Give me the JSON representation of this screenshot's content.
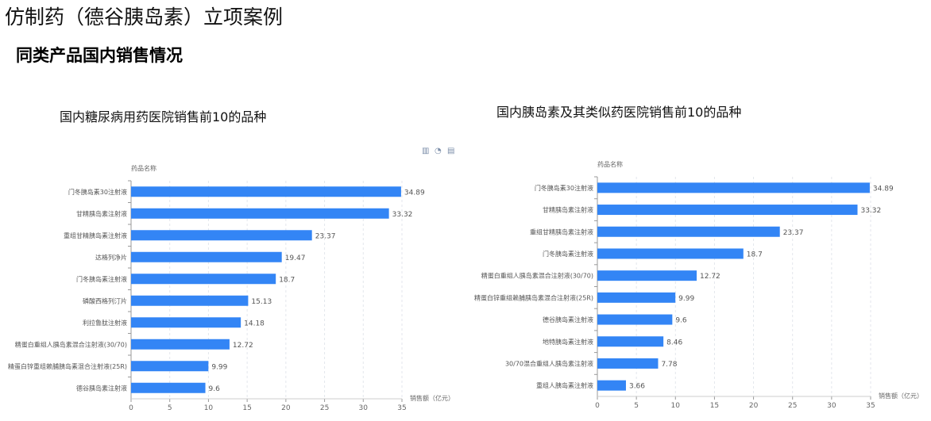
{
  "title": "仿制药（德谷胰岛素）立项案例",
  "subtitle": "同类产品国内销售情况",
  "toolbar_icons": [
    "bar-chart-icon",
    "pie-chart-icon",
    "data-view-icon"
  ],
  "chart_data": [
    {
      "type": "bar",
      "orientation": "horizontal",
      "title": "国内糖尿病用药医院销售前10的品种",
      "ylabel": "药品名称",
      "xlabel": "销售额（亿元）",
      "xlim": [
        0,
        35
      ],
      "xticks": [
        0,
        5,
        10,
        15,
        20,
        25,
        30,
        35
      ],
      "grid": "vertical-dashed",
      "color": "#3385f5",
      "categories": [
        "门冬胰岛素30注射液",
        "甘精胰岛素注射液",
        "重组甘精胰岛素注射液",
        "达格列净片",
        "门冬胰岛素注射液",
        "磷酸西格列汀片",
        "利拉鲁肽注射液",
        "精蛋白重组人胰岛素混合注射液(30/70)",
        "精蛋白锌重组赖脯胰岛素混合注射液(25R)",
        "德谷胰岛素注射液"
      ],
      "values": [
        34.89,
        33.32,
        23.37,
        19.47,
        18.7,
        15.13,
        14.18,
        12.72,
        9.99,
        9.6
      ]
    },
    {
      "type": "bar",
      "orientation": "horizontal",
      "title": "国内胰岛素及其类似药医院销售前10的品种",
      "ylabel": "药品名称",
      "xlabel": "销售额（亿元）",
      "xlim": [
        0,
        35
      ],
      "xticks": [
        0,
        5,
        10,
        15,
        20,
        25,
        30,
        35
      ],
      "grid": "vertical-dashed",
      "color": "#3385f5",
      "categories": [
        "门冬胰岛素30注射液",
        "甘精胰岛素注射液",
        "重组甘精胰岛素注射液",
        "门冬胰岛素注射液",
        "精蛋白重组人胰岛素混合注射液(30/70)",
        "精蛋白锌重组赖脯胰岛素混合注射液(25R)",
        "德谷胰岛素注射液",
        "地特胰岛素注射液",
        "30/70混合重组人胰岛素注射液",
        "重组人胰岛素注射液"
      ],
      "values": [
        34.89,
        33.32,
        23.37,
        18.7,
        12.72,
        9.99,
        9.6,
        8.46,
        7.78,
        3.66
      ]
    }
  ]
}
